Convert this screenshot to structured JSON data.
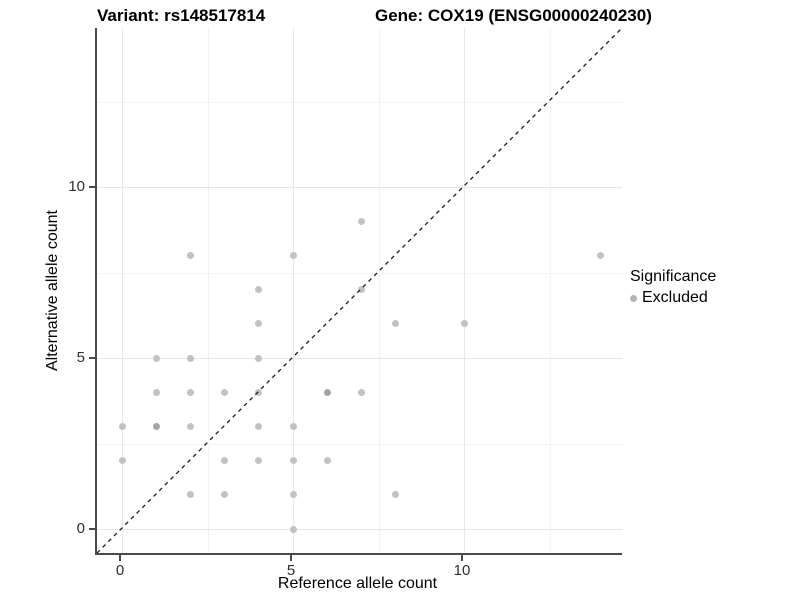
{
  "titles": {
    "variant": "Variant: rs148517814",
    "gene": "Gene: COX19 (ENSG00000240230)"
  },
  "legend": {
    "title": "Significance",
    "items": [
      {
        "label": "Excluded",
        "color": "#b5b5b5"
      }
    ]
  },
  "colors": {
    "point": "#c2c2c2",
    "point_overlap": "#a4a4a4",
    "axis_line": "#4a4a4a",
    "grid_major": "#e7e7e7",
    "grid_minor": "#f3f3f3",
    "reference_line": "#1a1a1a"
  },
  "chart_data": {
    "type": "scatter",
    "title": "Variant: rs148517814 / Gene: COX19 (ENSG00000240230)",
    "xlabel": "Reference allele count",
    "ylabel": "Alternative allele count",
    "xlim": [
      -0.7,
      14.7
    ],
    "ylim": [
      -0.7,
      14.7
    ],
    "x_major_ticks": [
      0,
      5,
      10
    ],
    "y_major_ticks": [
      0,
      5,
      10
    ],
    "x_minor_gridlines": [
      2.5,
      7.5,
      12.5
    ],
    "y_minor_gridlines": [
      2.5,
      7.5,
      12.5
    ],
    "grid": true,
    "legend_position": "right",
    "reference_line": {
      "type": "identity y=x",
      "style": "dashed",
      "color": "#1a1a1a"
    },
    "series": [
      {
        "name": "Excluded",
        "color": "#c2c2c2",
        "points": [
          [
            0,
            2
          ],
          [
            0,
            3
          ],
          [
            1,
            3
          ],
          [
            1,
            4
          ],
          [
            1,
            5
          ],
          [
            2,
            1
          ],
          [
            2,
            3
          ],
          [
            2,
            4
          ],
          [
            2,
            5
          ],
          [
            2,
            8
          ],
          [
            3,
            1
          ],
          [
            3,
            2
          ],
          [
            3,
            4
          ],
          [
            4,
            2
          ],
          [
            4,
            3
          ],
          [
            4,
            4
          ],
          [
            4,
            5
          ],
          [
            4,
            6
          ],
          [
            4,
            7
          ],
          [
            5,
            0
          ],
          [
            5,
            1
          ],
          [
            5,
            2
          ],
          [
            5,
            3
          ],
          [
            5,
            8
          ],
          [
            6,
            2
          ],
          [
            6,
            4
          ],
          [
            7,
            4
          ],
          [
            7,
            7
          ],
          [
            7,
            9
          ],
          [
            8,
            1
          ],
          [
            8,
            6
          ],
          [
            10,
            6
          ],
          [
            14,
            8
          ]
        ]
      }
    ],
    "darker_overlap_points": [
      [
        1,
        3
      ],
      [
        6,
        4
      ]
    ]
  }
}
